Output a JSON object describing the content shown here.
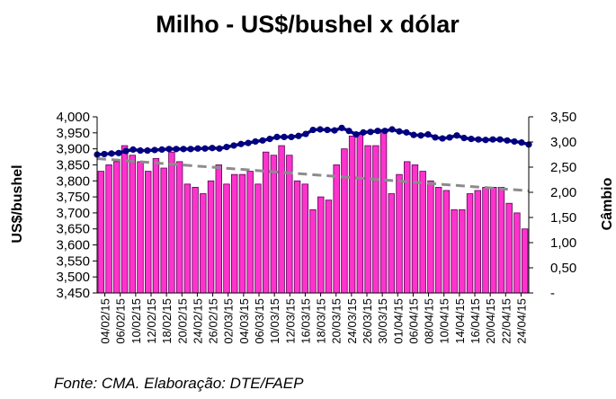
{
  "chart_data": {
    "type": "bar+line",
    "title": "Milho - US$/bushel x dólar",
    "ylabel": "US$/bushel",
    "y2label": "Câmbio",
    "source": "Fonte: CMA. Elaboração: DTE/FAEP",
    "ylim": [
      3.45,
      4.0
    ],
    "y_ticks": [
      "3,450",
      "3,500",
      "3,550",
      "3,600",
      "3,650",
      "3,700",
      "3,750",
      "3,800",
      "3,850",
      "3,900",
      "3,950",
      "4,000"
    ],
    "y2lim": [
      0,
      3.5
    ],
    "y2_ticks": [
      "-",
      "0,50",
      "1,00",
      "1,50",
      "2,00",
      "2,50",
      "3,00",
      "3,50"
    ],
    "x_ticks": [
      "04/02/15",
      "06/02/15",
      "10/02/15",
      "12/02/15",
      "18/02/15",
      "20/02/15",
      "24/02/15",
      "26/02/15",
      "02/03/15",
      "04/03/15",
      "06/03/15",
      "10/03/15",
      "12/03/15",
      "16/03/15",
      "18/03/15",
      "20/03/15",
      "24/03/15",
      "26/03/15",
      "30/03/15",
      "01/04/15",
      "06/04/15",
      "08/04/15",
      "10/04/15",
      "14/04/15",
      "16/04/15",
      "20/04/15",
      "22/04/15",
      "24/04/15"
    ],
    "bar_color": "#ff33cc",
    "line_color": "#000080",
    "trend_color": "#8c8c8c",
    "series": [
      {
        "values": [
          3.83,
          3.85,
          3.86,
          3.91,
          3.88,
          3.86,
          3.83,
          3.87,
          3.84,
          3.89,
          3.86,
          3.79,
          3.78,
          3.76,
          3.8,
          3.85,
          3.79,
          3.82,
          3.82,
          3.83,
          3.79,
          3.89,
          3.88,
          3.91,
          3.88,
          3.8,
          3.79,
          3.71,
          3.75,
          3.74,
          3.85,
          3.9,
          3.94,
          3.95,
          3.91,
          3.91,
          3.96,
          3.76,
          3.82,
          3.86,
          3.85,
          3.83,
          3.8,
          3.78,
          3.77,
          3.71,
          3.71,
          3.76,
          3.77,
          3.78,
          3.78,
          3.78,
          3.73,
          3.7,
          3.65
        ]
      },
      {
        "axis": "secondary",
        "values": [
          2.75,
          2.76,
          2.77,
          2.78,
          2.82,
          2.85,
          2.83,
          2.83,
          2.84,
          2.85,
          2.86,
          2.86,
          2.86,
          2.86,
          2.87,
          2.87,
          2.88,
          2.87,
          2.9,
          2.93,
          2.96,
          2.98,
          3.01,
          3.03,
          3.06,
          3.1,
          3.1,
          3.1,
          3.12,
          3.16,
          3.24,
          3.25,
          3.24,
          3.23,
          3.28,
          3.22,
          3.15,
          3.19,
          3.2,
          3.22,
          3.22,
          3.25,
          3.21,
          3.19,
          3.14,
          3.13,
          3.15,
          3.09,
          3.07,
          3.09,
          3.13,
          3.08,
          3.06,
          3.05,
          3.04,
          3.05,
          3.05,
          3.03,
          3.01,
          2.99,
          2.95
        ]
      },
      {
        "type": "trend",
        "values": [
          2.67,
          2.03
        ]
      }
    ]
  }
}
